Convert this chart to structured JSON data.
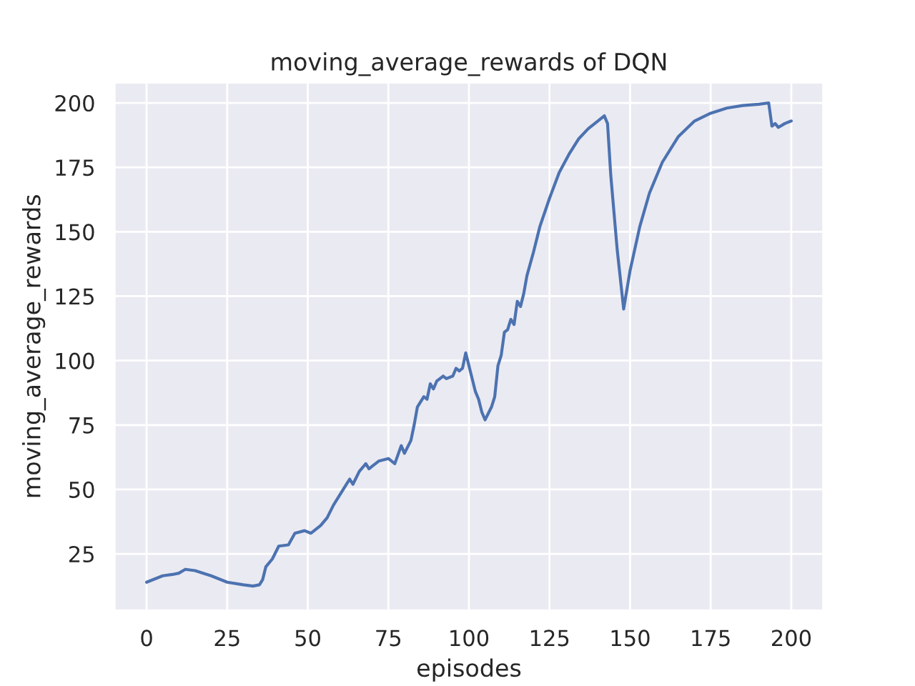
{
  "chart_data": {
    "type": "line",
    "title": "moving_average_rewards of DQN",
    "xlabel": "episodes",
    "ylabel": "moving_average_rewards",
    "x": [
      0,
      5,
      8,
      10,
      12,
      15,
      20,
      25,
      30,
      33,
      35,
      36,
      37,
      39,
      41,
      44,
      46,
      49,
      51,
      54,
      56,
      58,
      60,
      62,
      63,
      64,
      66,
      68,
      69,
      70,
      72,
      75,
      77,
      79,
      80,
      82,
      83,
      84,
      86,
      87,
      88,
      89,
      90,
      92,
      93,
      95,
      96,
      97,
      98,
      99,
      100,
      102,
      103,
      104,
      105,
      107,
      108,
      109,
      110,
      111,
      112,
      113,
      114,
      115,
      116,
      117,
      118,
      120,
      122,
      125,
      128,
      131,
      134,
      137,
      140,
      142,
      143,
      144,
      146,
      148,
      150,
      153,
      156,
      160,
      165,
      170,
      175,
      180,
      185,
      190,
      193,
      194,
      195,
      196,
      198,
      200
    ],
    "series": [
      {
        "color": "#4c72b0",
        "values": [
          14,
          16.5,
          17,
          17.5,
          19,
          18.5,
          16.5,
          14,
          13,
          12.5,
          13,
          15,
          20,
          23,
          28,
          28.5,
          33,
          34,
          33,
          36,
          39,
          44,
          48,
          52,
          54,
          52,
          57,
          60,
          58,
          59,
          61,
          62,
          60,
          67,
          64,
          69,
          75,
          82,
          86,
          85,
          91,
          89,
          92,
          94,
          93,
          94,
          97,
          96,
          97,
          103,
          98,
          88,
          85,
          80,
          77,
          82,
          86,
          98,
          102,
          111,
          112,
          116,
          114,
          123,
          121,
          126,
          133,
          142,
          152,
          163,
          173,
          180,
          186,
          190,
          193,
          195,
          192,
          172,
          143,
          120,
          135,
          152,
          165,
          177,
          187,
          193,
          196,
          198,
          199,
          199.5,
          200,
          191,
          192,
          190.5,
          192,
          193
        ]
      }
    ],
    "xlim": [
      -10,
      210
    ],
    "ylim": [
      3,
      208
    ],
    "xticks": [
      0,
      25,
      50,
      75,
      100,
      125,
      150,
      175,
      200
    ],
    "yticks": [
      25,
      50,
      75,
      100,
      125,
      150,
      175,
      200
    ],
    "grid": true
  }
}
